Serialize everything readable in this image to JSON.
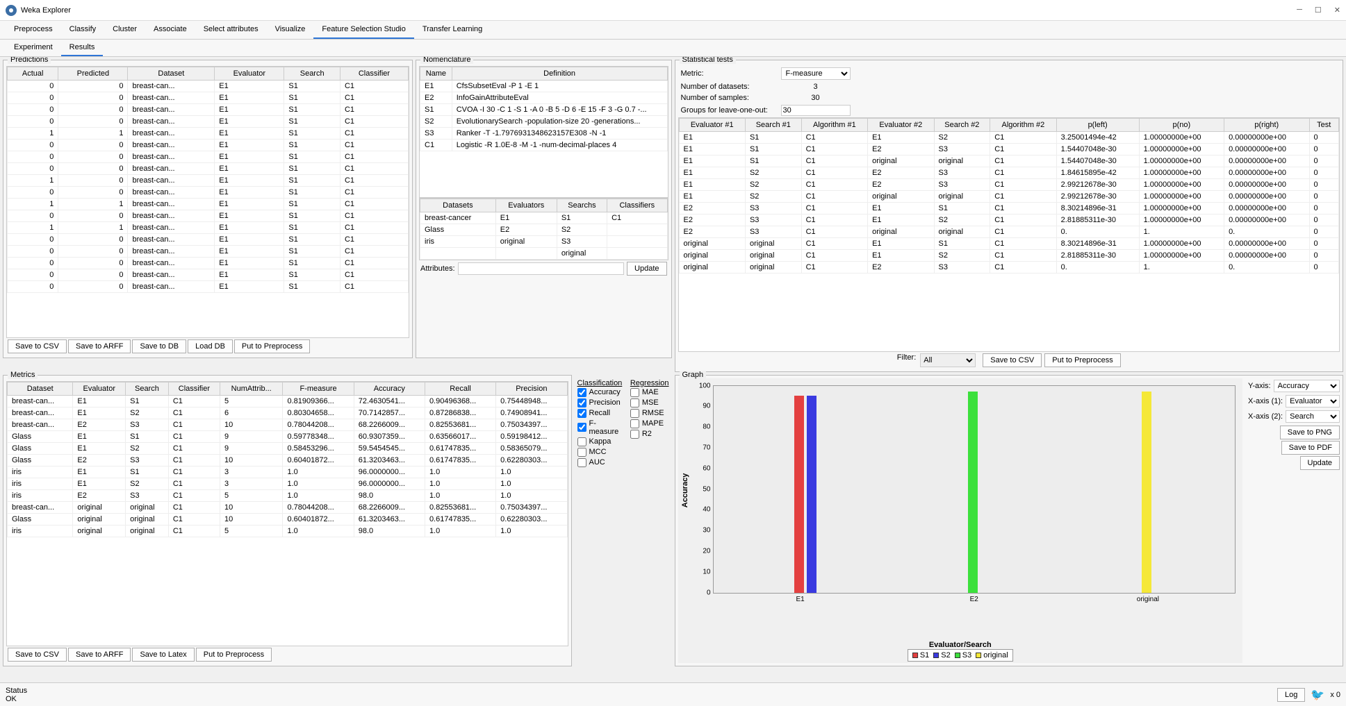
{
  "window": {
    "title": "Weka Explorer"
  },
  "main_tabs": [
    "Preprocess",
    "Classify",
    "Cluster",
    "Associate",
    "Select attributes",
    "Visualize",
    "Feature Selection Studio",
    "Transfer Learning"
  ],
  "main_tab_active": 6,
  "sub_tabs": [
    "Experiment",
    "Results"
  ],
  "sub_tab_active": 1,
  "predictions": {
    "title": "Predictions",
    "columns": [
      "Actual",
      "Predicted",
      "Dataset",
      "Evaluator",
      "Search",
      "Classifier"
    ],
    "rows": [
      [
        "0",
        "0",
        "breast-can...",
        "E1",
        "S1",
        "C1"
      ],
      [
        "0",
        "0",
        "breast-can...",
        "E1",
        "S1",
        "C1"
      ],
      [
        "0",
        "0",
        "breast-can...",
        "E1",
        "S1",
        "C1"
      ],
      [
        "0",
        "0",
        "breast-can...",
        "E1",
        "S1",
        "C1"
      ],
      [
        "1",
        "1",
        "breast-can...",
        "E1",
        "S1",
        "C1"
      ],
      [
        "0",
        "0",
        "breast-can...",
        "E1",
        "S1",
        "C1"
      ],
      [
        "0",
        "0",
        "breast-can...",
        "E1",
        "S1",
        "C1"
      ],
      [
        "0",
        "0",
        "breast-can...",
        "E1",
        "S1",
        "C1"
      ],
      [
        "1",
        "0",
        "breast-can...",
        "E1",
        "S1",
        "C1"
      ],
      [
        "0",
        "0",
        "breast-can...",
        "E1",
        "S1",
        "C1"
      ],
      [
        "1",
        "1",
        "breast-can...",
        "E1",
        "S1",
        "C1"
      ],
      [
        "0",
        "0",
        "breast-can...",
        "E1",
        "S1",
        "C1"
      ],
      [
        "1",
        "1",
        "breast-can...",
        "E1",
        "S1",
        "C1"
      ],
      [
        "0",
        "0",
        "breast-can...",
        "E1",
        "S1",
        "C1"
      ],
      [
        "0",
        "0",
        "breast-can...",
        "E1",
        "S1",
        "C1"
      ],
      [
        "0",
        "0",
        "breast-can...",
        "E1",
        "S1",
        "C1"
      ],
      [
        "0",
        "0",
        "breast-can...",
        "E1",
        "S1",
        "C1"
      ],
      [
        "0",
        "0",
        "breast-can...",
        "E1",
        "S1",
        "C1"
      ]
    ],
    "buttons": [
      "Save to CSV",
      "Save to ARFF",
      "Save to DB",
      "Load DB",
      "Put to Preprocess"
    ]
  },
  "nomenclature": {
    "title": "Nomenclature",
    "columns": [
      "Name",
      "Definition"
    ],
    "rows": [
      [
        "E1",
        "CfsSubsetEval -P 1 -E 1"
      ],
      [
        "E2",
        "InfoGainAttributeEval"
      ],
      [
        "S1",
        "CVOA -I 30 -C 1 -S 1 -A 0 -B 5 -D 6 -E 15 -F 3 -G 0.7 -..."
      ],
      [
        "S2",
        "EvolutionarySearch -population-size 20 -generations..."
      ],
      [
        "S3",
        "Ranker -T -1.7976931348623157E308 -N -1"
      ],
      [
        "C1",
        "Logistic -R 1.0E-8 -M -1 -num-decimal-places 4"
      ]
    ],
    "grid_cols": [
      "Datasets",
      "Evaluators",
      "Searchs",
      "Classifiers"
    ],
    "grid_rows": [
      [
        "breast-cancer",
        "E1",
        "S1",
        "C1"
      ],
      [
        "Glass",
        "E2",
        "S2",
        ""
      ],
      [
        "iris",
        "original",
        "S3",
        ""
      ],
      [
        "",
        "",
        "original",
        ""
      ]
    ],
    "attributes_label": "Attributes:",
    "update_btn": "Update"
  },
  "stats": {
    "title": "Statistical tests",
    "metric_label": "Metric:",
    "metric_value": "F-measure",
    "nds_label": "Number of datasets:",
    "nds_value": "3",
    "nsamp_label": "Number of samples:",
    "nsamp_value": "30",
    "groups_label": "Groups for leave-one-out:",
    "groups_value": "30",
    "columns": [
      "Evaluator #1",
      "Search #1",
      "Algorithm #1",
      "Evaluator #2",
      "Search #2",
      "Algorithm #2",
      "p(left)",
      "p(no)",
      "p(right)",
      "Test"
    ],
    "rows": [
      [
        "E1",
        "S1",
        "C1",
        "E1",
        "S2",
        "C1",
        "3.25001494e-42",
        "1.00000000e+00",
        "0.00000000e+00",
        "0"
      ],
      [
        "E1",
        "S1",
        "C1",
        "E2",
        "S3",
        "C1",
        "1.54407048e-30",
        "1.00000000e+00",
        "0.00000000e+00",
        "0"
      ],
      [
        "E1",
        "S1",
        "C1",
        "original",
        "original",
        "C1",
        "1.54407048e-30",
        "1.00000000e+00",
        "0.00000000e+00",
        "0"
      ],
      [
        "E1",
        "S2",
        "C1",
        "E2",
        "S3",
        "C1",
        "1.84615895e-42",
        "1.00000000e+00",
        "0.00000000e+00",
        "0"
      ],
      [
        "E1",
        "S2",
        "C1",
        "E2",
        "S3",
        "C1",
        "2.99212678e-30",
        "1.00000000e+00",
        "0.00000000e+00",
        "0"
      ],
      [
        "E1",
        "S2",
        "C1",
        "original",
        "original",
        "C1",
        "2.99212678e-30",
        "1.00000000e+00",
        "0.00000000e+00",
        "0"
      ],
      [
        "E2",
        "S3",
        "C1",
        "E1",
        "S1",
        "C1",
        "8.30214896e-31",
        "1.00000000e+00",
        "0.00000000e+00",
        "0"
      ],
      [
        "E2",
        "S3",
        "C1",
        "E1",
        "S2",
        "C1",
        "2.81885311e-30",
        "1.00000000e+00",
        "0.00000000e+00",
        "0"
      ],
      [
        "E2",
        "S3",
        "C1",
        "original",
        "original",
        "C1",
        "0.",
        "1.",
        "0.",
        "0"
      ],
      [
        "original",
        "original",
        "C1",
        "E1",
        "S1",
        "C1",
        "8.30214896e-31",
        "1.00000000e+00",
        "0.00000000e+00",
        "0"
      ],
      [
        "original",
        "original",
        "C1",
        "E1",
        "S2",
        "C1",
        "2.81885311e-30",
        "1.00000000e+00",
        "0.00000000e+00",
        "0"
      ],
      [
        "original",
        "original",
        "C1",
        "E2",
        "S3",
        "C1",
        "0.",
        "1.",
        "0.",
        "0"
      ]
    ],
    "filter_label": "Filter:",
    "filter_value": "All",
    "buttons": [
      "Save to CSV",
      "Put to Preprocess"
    ]
  },
  "metrics": {
    "title": "Metrics",
    "columns": [
      "Dataset",
      "Evaluator",
      "Search",
      "Classifier",
      "NumAttrib...",
      "F-measure",
      "Accuracy",
      "Recall",
      "Precision"
    ],
    "rows": [
      [
        "breast-can...",
        "E1",
        "S1",
        "C1",
        "5",
        "0.81909366...",
        "72.4630541...",
        "0.90496368...",
        "0.75448948..."
      ],
      [
        "breast-can...",
        "E1",
        "S2",
        "C1",
        "6",
        "0.80304658...",
        "70.7142857...",
        "0.87286838...",
        "0.74908941..."
      ],
      [
        "breast-can...",
        "E2",
        "S3",
        "C1",
        "10",
        "0.78044208...",
        "68.2266009...",
        "0.82553681...",
        "0.75034397..."
      ],
      [
        "Glass",
        "E1",
        "S1",
        "C1",
        "9",
        "0.59778348...",
        "60.9307359...",
        "0.63566017...",
        "0.59198412..."
      ],
      [
        "Glass",
        "E1",
        "S2",
        "C1",
        "9",
        "0.58453296...",
        "59.5454545...",
        "0.61747835...",
        "0.58365079..."
      ],
      [
        "Glass",
        "E2",
        "S3",
        "C1",
        "10",
        "0.60401872...",
        "61.3203463...",
        "0.61747835...",
        "0.62280303..."
      ],
      [
        "iris",
        "E1",
        "S1",
        "C1",
        "3",
        "1.0",
        "96.0000000...",
        "1.0",
        "1.0"
      ],
      [
        "iris",
        "E1",
        "S2",
        "C1",
        "3",
        "1.0",
        "96.0000000...",
        "1.0",
        "1.0"
      ],
      [
        "iris",
        "E2",
        "S3",
        "C1",
        "5",
        "1.0",
        "98.0",
        "1.0",
        "1.0"
      ],
      [
        "breast-can...",
        "original",
        "original",
        "C1",
        "10",
        "0.78044208...",
        "68.2266009...",
        "0.82553681...",
        "0.75034397..."
      ],
      [
        "Glass",
        "original",
        "original",
        "C1",
        "10",
        "0.60401872...",
        "61.3203463...",
        "0.61747835...",
        "0.62280303..."
      ],
      [
        "iris",
        "original",
        "original",
        "C1",
        "5",
        "1.0",
        "98.0",
        "1.0",
        "1.0"
      ]
    ],
    "buttons": [
      "Save to CSV",
      "Save to ARFF",
      "Save to Latex",
      "Put to Preprocess"
    ],
    "class_label": "Classification",
    "reg_label": "Regression",
    "classification": [
      {
        "label": "Accuracy",
        "checked": true
      },
      {
        "label": "Precision",
        "checked": true
      },
      {
        "label": "Recall",
        "checked": true
      },
      {
        "label": "F-measure",
        "checked": true
      },
      {
        "label": "Kappa",
        "checked": false
      },
      {
        "label": "MCC",
        "checked": false
      },
      {
        "label": "AUC",
        "checked": false
      }
    ],
    "regression": [
      {
        "label": "MAE",
        "checked": false
      },
      {
        "label": "MSE",
        "checked": false
      },
      {
        "label": "RMSE",
        "checked": false
      },
      {
        "label": "MAPE",
        "checked": false
      },
      {
        "label": "R2",
        "checked": false
      }
    ]
  },
  "graph": {
    "title": "Graph",
    "ylabel": "Accuracy",
    "xlabel": "Evaluator/Search",
    "ylim": [
      0,
      100
    ],
    "ytick_step": 10,
    "groups": [
      "E1",
      "E2",
      "original"
    ],
    "series": [
      {
        "name": "S1",
        "color": "#e34040",
        "values": [
          95,
          null,
          null
        ]
      },
      {
        "name": "S2",
        "color": "#3a3ae0",
        "values": [
          95,
          null,
          null
        ]
      },
      {
        "name": "S3",
        "color": "#3ce03c",
        "values": [
          null,
          97,
          null
        ]
      },
      {
        "name": "original",
        "color": "#f5e838",
        "values": [
          null,
          null,
          97
        ]
      }
    ],
    "controls": {
      "yaxis_label": "Y-axis:",
      "yaxis_value": "Accuracy",
      "x1_label": "X-axis (1):",
      "x1_value": "Evaluator",
      "x2_label": "X-axis (2):",
      "x2_value": "Search",
      "buttons": [
        "Save to PNG",
        "Save to PDF",
        "Update"
      ]
    }
  },
  "status": {
    "label": "Status",
    "text": "OK",
    "log_btn": "Log",
    "x0": "x 0"
  }
}
